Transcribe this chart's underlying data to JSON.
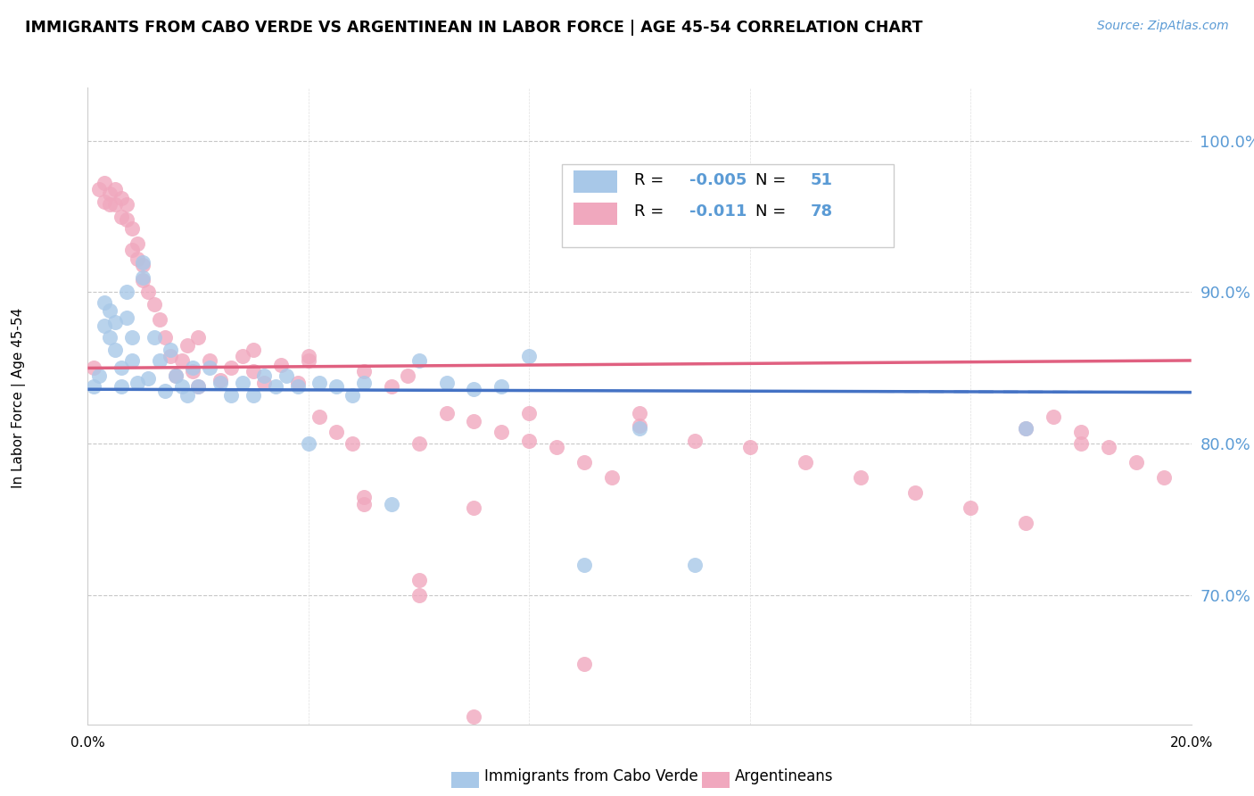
{
  "title": "IMMIGRANTS FROM CABO VERDE VS ARGENTINEAN IN LABOR FORCE | AGE 45-54 CORRELATION CHART",
  "source": "Source: ZipAtlas.com",
  "ylabel": "In Labor Force | Age 45-54",
  "yaxis_labels": [
    "100.0%",
    "90.0%",
    "80.0%",
    "70.0%"
  ],
  "yaxis_values": [
    1.0,
    0.9,
    0.8,
    0.7
  ],
  "xlim": [
    0.0,
    0.2
  ],
  "ylim": [
    0.615,
    1.035
  ],
  "legend_label1": "Immigrants from Cabo Verde",
  "legend_label2": "Argentineans",
  "R1": "-0.005",
  "N1": "51",
  "R2": "-0.011",
  "N2": "78",
  "color_blue": "#A8C8E8",
  "color_pink": "#F0A8BE",
  "color_blue_text": "#5B9BD5",
  "color_trend_blue": "#4472C4",
  "color_trend_pink": "#E06080",
  "cabo_verde_x": [
    0.001,
    0.002,
    0.003,
    0.003,
    0.004,
    0.004,
    0.005,
    0.005,
    0.006,
    0.006,
    0.007,
    0.007,
    0.008,
    0.008,
    0.009,
    0.01,
    0.01,
    0.011,
    0.012,
    0.013,
    0.014,
    0.015,
    0.016,
    0.017,
    0.018,
    0.019,
    0.02,
    0.022,
    0.024,
    0.026,
    0.028,
    0.03,
    0.032,
    0.034,
    0.036,
    0.038,
    0.04,
    0.042,
    0.045,
    0.048,
    0.05,
    0.055,
    0.06,
    0.065,
    0.07,
    0.075,
    0.08,
    0.09,
    0.1,
    0.11,
    0.17
  ],
  "cabo_verde_y": [
    0.838,
    0.845,
    0.893,
    0.878,
    0.888,
    0.87,
    0.88,
    0.862,
    0.85,
    0.838,
    0.9,
    0.883,
    0.87,
    0.855,
    0.84,
    0.92,
    0.91,
    0.843,
    0.87,
    0.855,
    0.835,
    0.862,
    0.845,
    0.838,
    0.832,
    0.85,
    0.838,
    0.85,
    0.84,
    0.832,
    0.84,
    0.832,
    0.845,
    0.838,
    0.845,
    0.838,
    0.8,
    0.84,
    0.838,
    0.832,
    0.84,
    0.76,
    0.855,
    0.84,
    0.836,
    0.838,
    0.858,
    0.72,
    0.81,
    0.72,
    0.81
  ],
  "argentinean_x": [
    0.001,
    0.002,
    0.003,
    0.003,
    0.004,
    0.004,
    0.005,
    0.005,
    0.006,
    0.006,
    0.007,
    0.007,
    0.008,
    0.008,
    0.009,
    0.009,
    0.01,
    0.01,
    0.011,
    0.012,
    0.013,
    0.014,
    0.015,
    0.016,
    0.017,
    0.018,
    0.019,
    0.02,
    0.022,
    0.024,
    0.026,
    0.028,
    0.03,
    0.032,
    0.035,
    0.038,
    0.04,
    0.042,
    0.045,
    0.048,
    0.05,
    0.055,
    0.058,
    0.06,
    0.065,
    0.07,
    0.075,
    0.08,
    0.085,
    0.09,
    0.095,
    0.1,
    0.11,
    0.12,
    0.13,
    0.14,
    0.15,
    0.16,
    0.17,
    0.175,
    0.18,
    0.185,
    0.19,
    0.195,
    0.02,
    0.03,
    0.04,
    0.05,
    0.06,
    0.07,
    0.08,
    0.09,
    0.1,
    0.05,
    0.06,
    0.07,
    0.17,
    0.18
  ],
  "argentinean_y": [
    0.85,
    0.968,
    0.972,
    0.96,
    0.965,
    0.958,
    0.958,
    0.968,
    0.962,
    0.95,
    0.958,
    0.948,
    0.942,
    0.928,
    0.932,
    0.922,
    0.918,
    0.908,
    0.9,
    0.892,
    0.882,
    0.87,
    0.858,
    0.845,
    0.855,
    0.865,
    0.848,
    0.838,
    0.855,
    0.842,
    0.85,
    0.858,
    0.848,
    0.84,
    0.852,
    0.84,
    0.858,
    0.818,
    0.808,
    0.8,
    0.848,
    0.838,
    0.845,
    0.8,
    0.82,
    0.815,
    0.808,
    0.82,
    0.798,
    0.788,
    0.778,
    0.812,
    0.802,
    0.798,
    0.788,
    0.778,
    0.768,
    0.758,
    0.748,
    0.818,
    0.808,
    0.798,
    0.788,
    0.778,
    0.87,
    0.862,
    0.855,
    0.765,
    0.71,
    0.758,
    0.802,
    0.655,
    0.82,
    0.76,
    0.7,
    0.62,
    0.81,
    0.8
  ]
}
